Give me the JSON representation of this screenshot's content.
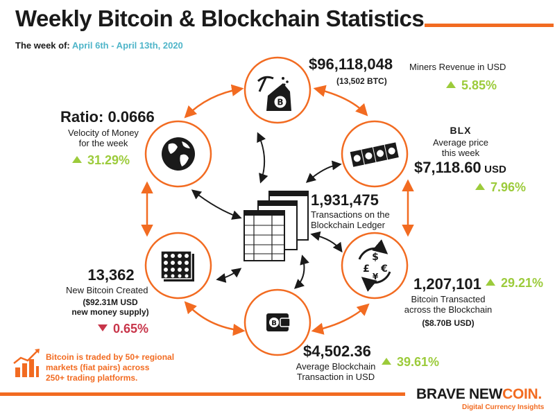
{
  "header": {
    "title": "Weekly Bitcoin & Blockchain Statistics",
    "week_label": "The week of:",
    "week_dates": "April 6th - April 13th, 2020"
  },
  "miners": {
    "value": "$96,118,048",
    "label": "Miners Revenue in USD",
    "btc": "(13,502 BTC)",
    "change": "5.85%",
    "direction": "up"
  },
  "price": {
    "logo": "BLX",
    "label": "Average price this week",
    "label_line1": "Average price",
    "label_line2": "this week",
    "value": "$7,118.60",
    "unit": "USD",
    "change": "7.96%",
    "direction": "up"
  },
  "velocity": {
    "value": "Ratio: 0.0666",
    "label_line1": "Velocity of Money",
    "label_line2": "for the week",
    "change": "31.29%",
    "direction": "up"
  },
  "transactions": {
    "value": "1,931,475",
    "label_line1": "Transactions on the",
    "label_line2": "Blockchain Ledger"
  },
  "transacted": {
    "value": "1,207,101",
    "label_line1": "Bitcoin Transacted",
    "label_line2": "across the Blockchain",
    "usd": "($8.70B USD)",
    "change": "29.21%",
    "direction": "up"
  },
  "new_bitcoin": {
    "value": "13,362",
    "label": "New Bitcoin Created",
    "usd_line1": "($92.31M USD",
    "usd_line2": "new money supply)",
    "change": "0.65%",
    "direction": "down"
  },
  "avg_tx": {
    "value": "$4,502.36",
    "label_line1": "Average Blockchain",
    "label_line2": "Transaction in USD",
    "change": "39.61%",
    "direction": "up"
  },
  "note": {
    "line1": "Bitcoin is traded by 50+ regional",
    "line2": "markets (fiat pairs) across",
    "line3": "250+ trading platforms."
  },
  "brand": {
    "name_part1": "BRAVE NEW",
    "name_part2": "COIN.",
    "tagline": "Digital Currency Insights"
  },
  "colors": {
    "accent": "#f26b21",
    "up": "#9ccb3b",
    "down": "#c8354a",
    "highlight": "#4fb5c9"
  },
  "icons": {
    "mining": "pickaxe-bitcoin-icon",
    "price": "banknotes-icon",
    "velocity": "globe-icon",
    "ledger": "ledger-documents-icon",
    "transacted": "currency-exchange-icon",
    "new_bitcoin": "coin-grid-icon",
    "avg_tx": "wallet-icon",
    "note": "growth-chart-icon"
  }
}
